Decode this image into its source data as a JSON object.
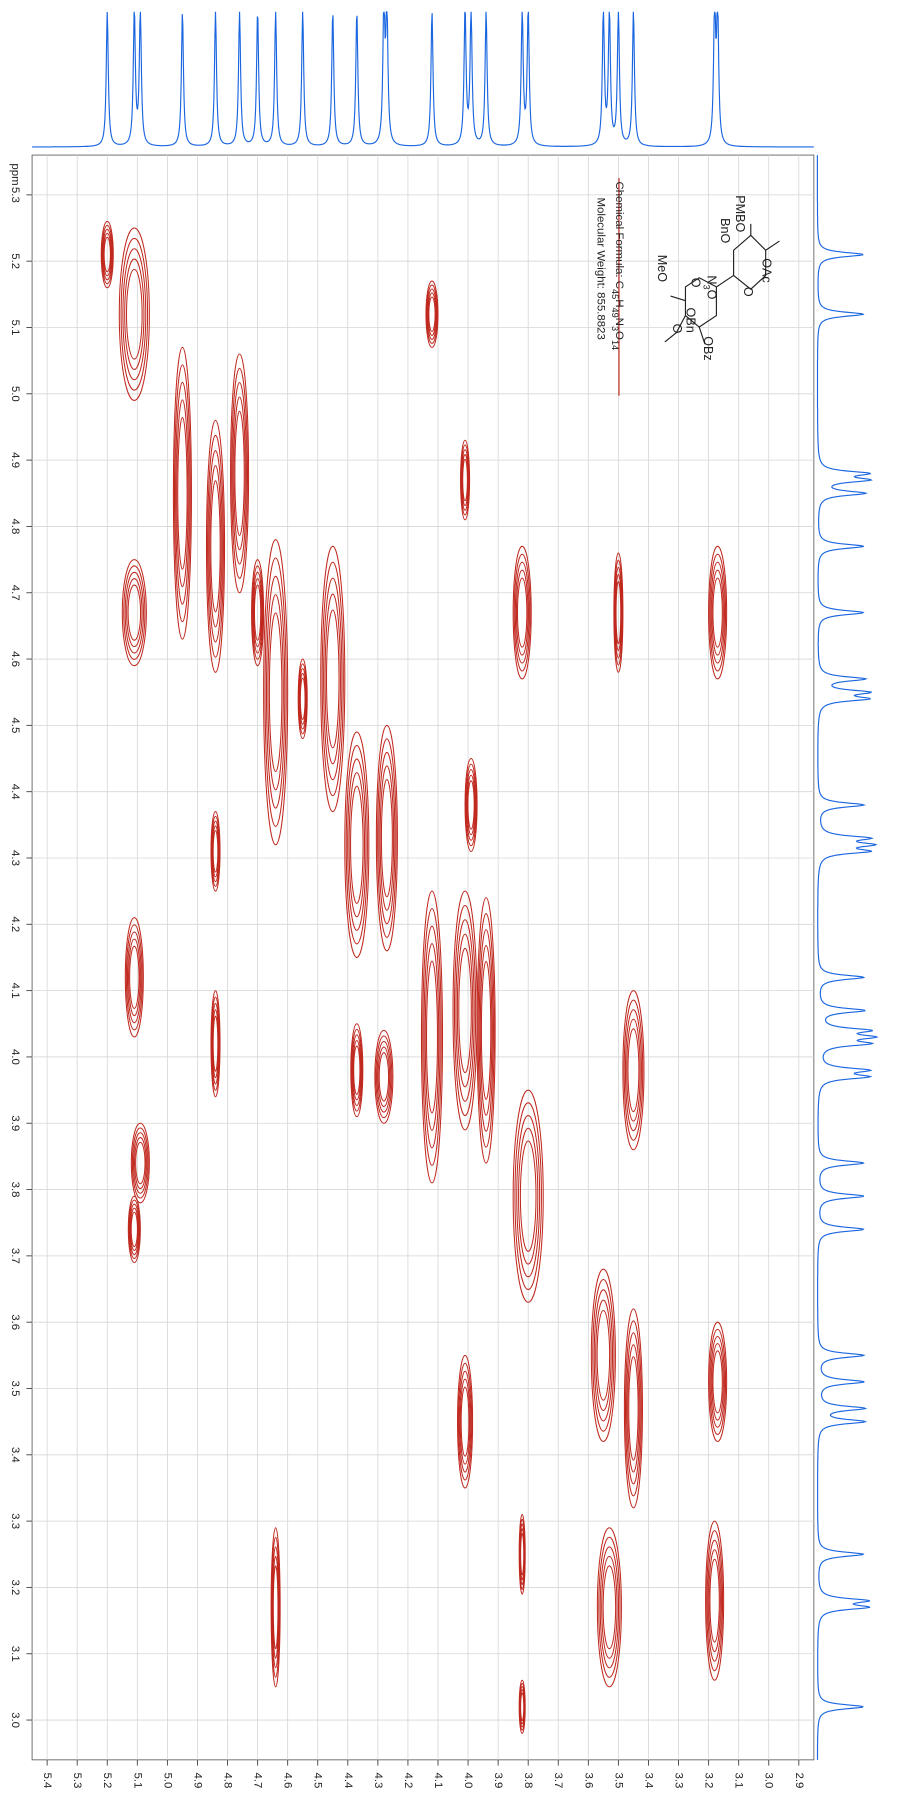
{
  "chart_data": {
    "type": "contour",
    "ylabel": "ppm",
    "xlim": [
      5.45,
      2.85
    ],
    "ylim": [
      5.36,
      2.94
    ],
    "xticks": [
      5.4,
      5.3,
      5.2,
      5.1,
      {
        "value": 5,
        "label": "5.0"
      },
      4.9,
      4.8,
      4.7,
      4.6,
      4.5,
      4.4,
      4.3,
      4.2,
      4.1,
      {
        "value": 4,
        "label": "4.0"
      },
      3.9,
      3.8,
      3.7,
      3.6,
      3.5,
      3.4,
      3.3,
      3.2,
      3.1,
      {
        "value": 3,
        "label": "3.0"
      },
      2.9
    ],
    "yticks": [
      5.3,
      5.2,
      5.1,
      {
        "value": 5,
        "label": "5.0"
      },
      4.9,
      4.8,
      4.7,
      4.6,
      4.5,
      4.4,
      4.3,
      4.2,
      4.1,
      {
        "value": 4,
        "label": "4.0"
      },
      3.9,
      3.8,
      3.7,
      3.6,
      3.5,
      3.4,
      3.3,
      3.2,
      3.1,
      {
        "value": 3,
        "label": "3.0"
      }
    ],
    "grid": true,
    "color": "#c0281e",
    "projection_color": "#1a66e0",
    "peaks": [
      {
        "x": 5.2,
        "y": 5.21,
        "x_width": 0.02,
        "y_width": 0.05
      },
      {
        "x": 5.11,
        "y": 5.12,
        "x_width": 0.05,
        "y_width": 0.13
      },
      {
        "x": 5.11,
        "y": 4.67,
        "x_width": 0.04,
        "y_width": 0.08
      },
      {
        "x": 5.11,
        "y": 4.12,
        "x_width": 0.03,
        "y_width": 0.09
      },
      {
        "x": 5.09,
        "y": 3.84,
        "x_width": 0.03,
        "y_width": 0.06
      },
      {
        "x": 5.11,
        "y": 3.74,
        "x_width": 0.02,
        "y_width": 0.05
      },
      {
        "x": 4.95,
        "y": 4.85,
        "x_width": 0.03,
        "y_width": 0.22
      },
      {
        "x": 4.84,
        "y": 4.77,
        "x_width": 0.03,
        "y_width": 0.19
      },
      {
        "x": 4.76,
        "y": 4.88,
        "x_width": 0.03,
        "y_width": 0.18
      },
      {
        "x": 4.84,
        "y": 4.31,
        "x_width": 0.015,
        "y_width": 0.06
      },
      {
        "x": 4.84,
        "y": 4.02,
        "x_width": 0.015,
        "y_width": 0.08
      },
      {
        "x": 4.7,
        "y": 4.67,
        "x_width": 0.02,
        "y_width": 0.08
      },
      {
        "x": 4.64,
        "y": 4.55,
        "x_width": 0.04,
        "y_width": 0.23
      },
      {
        "x": 4.55,
        "y": 4.54,
        "x_width": 0.015,
        "y_width": 0.06
      },
      {
        "x": 4.45,
        "y": 4.57,
        "x_width": 0.04,
        "y_width": 0.2
      },
      {
        "x": 4.37,
        "y": 4.32,
        "x_width": 0.04,
        "y_width": 0.17
      },
      {
        "x": 4.27,
        "y": 4.33,
        "x_width": 0.035,
        "y_width": 0.17
      },
      {
        "x": 4.37,
        "y": 3.98,
        "x_width": 0.02,
        "y_width": 0.07
      },
      {
        "x": 4.28,
        "y": 3.97,
        "x_width": 0.03,
        "y_width": 0.07
      },
      {
        "x": 4.12,
        "y": 5.12,
        "x_width": 0.02,
        "y_width": 0.05
      },
      {
        "x": 4.12,
        "y": 4.03,
        "x_width": 0.035,
        "y_width": 0.22
      },
      {
        "x": 4.01,
        "y": 4.87,
        "x_width": 0.015,
        "y_width": 0.06
      },
      {
        "x": 4.01,
        "y": 4.07,
        "x_width": 0.04,
        "y_width": 0.18
      },
      {
        "x": 3.99,
        "y": 4.38,
        "x_width": 0.02,
        "y_width": 0.07
      },
      {
        "x": 3.94,
        "y": 4.04,
        "x_width": 0.03,
        "y_width": 0.2
      },
      {
        "x": 4.01,
        "y": 3.45,
        "x_width": 0.025,
        "y_width": 0.1
      },
      {
        "x": 3.82,
        "y": 4.67,
        "x_width": 0.03,
        "y_width": 0.1
      },
      {
        "x": 3.8,
        "y": 3.79,
        "x_width": 0.05,
        "y_width": 0.16
      },
      {
        "x": 3.82,
        "y": 3.25,
        "x_width": 0.01,
        "y_width": 0.06
      },
      {
        "x": 3.82,
        "y": 3.02,
        "x_width": 0.01,
        "y_width": 0.04
      },
      {
        "x": 3.5,
        "y": 4.67,
        "x_width": 0.015,
        "y_width": 0.09
      },
      {
        "x": 3.45,
        "y": 3.98,
        "x_width": 0.035,
        "y_width": 0.12
      },
      {
        "x": 3.55,
        "y": 3.55,
        "x_width": 0.04,
        "y_width": 0.13
      },
      {
        "x": 3.45,
        "y": 3.47,
        "x_width": 0.03,
        "y_width": 0.15
      },
      {
        "x": 3.53,
        "y": 3.17,
        "x_width": 0.04,
        "y_width": 0.12
      },
      {
        "x": 3.17,
        "y": 4.67,
        "x_width": 0.03,
        "y_width": 0.1
      },
      {
        "x": 3.17,
        "y": 3.51,
        "x_width": 0.03,
        "y_width": 0.09
      },
      {
        "x": 3.18,
        "y": 3.18,
        "x_width": 0.03,
        "y_width": 0.12
      },
      {
        "x": 4.64,
        "y": 3.17,
        "x_width": 0.015,
        "y_width": 0.12
      }
    ],
    "annotations": [
      "Chemical Formula: C45H49N3O14",
      "Molecular Weight: 855.8823"
    ],
    "structure_labels": [
      "OAc",
      "PMBO",
      "BnO",
      "O",
      "N3O",
      "OBz",
      "MeO",
      "O",
      "OBn",
      "O"
    ]
  }
}
